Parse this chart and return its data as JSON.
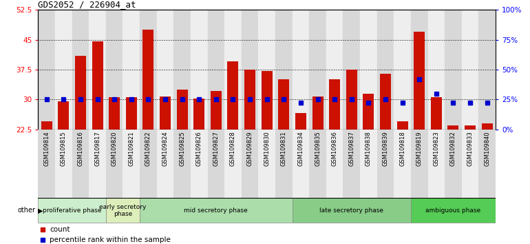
{
  "title": "GDS2052 / 226904_at",
  "samples": [
    "GSM109814",
    "GSM109815",
    "GSM109816",
    "GSM109817",
    "GSM109820",
    "GSM109821",
    "GSM109822",
    "GSM109824",
    "GSM109825",
    "GSM109826",
    "GSM109827",
    "GSM109828",
    "GSM109829",
    "GSM109830",
    "GSM109831",
    "GSM109834",
    "GSM109835",
    "GSM109836",
    "GSM109837",
    "GSM109838",
    "GSM109839",
    "GSM109818",
    "GSM109819",
    "GSM109823",
    "GSM109832",
    "GSM109833",
    "GSM109840"
  ],
  "counts": [
    24.5,
    29.5,
    41.0,
    44.5,
    30.5,
    30.5,
    47.5,
    30.8,
    32.5,
    30.3,
    32.2,
    39.5,
    37.5,
    37.2,
    35.0,
    26.5,
    30.8,
    35.0,
    37.5,
    31.5,
    36.5,
    24.5,
    47.0,
    30.5,
    23.5,
    23.5,
    24.0
  ],
  "pct_right": [
    25,
    25,
    25,
    25,
    25,
    25,
    25,
    25,
    25,
    25,
    25,
    25,
    25,
    25,
    25,
    22,
    25,
    25,
    25,
    22,
    25,
    22,
    42,
    30,
    22,
    22,
    22
  ],
  "phases": [
    {
      "name": "proliferative phase",
      "start": 0,
      "end": 4,
      "color": "#cceecc"
    },
    {
      "name": "early secretory\nphase",
      "start": 4,
      "end": 6,
      "color": "#ddeebb"
    },
    {
      "name": "mid secretory phase",
      "start": 6,
      "end": 15,
      "color": "#aaddaa"
    },
    {
      "name": "late secretory phase",
      "start": 15,
      "end": 22,
      "color": "#88cc88"
    },
    {
      "name": "ambiguous phase",
      "start": 22,
      "end": 27,
      "color": "#55cc55"
    }
  ],
  "ylim_left": [
    22.5,
    52.5
  ],
  "ylim_right": [
    0,
    100
  ],
  "yticks_left": [
    22.5,
    30,
    37.5,
    45,
    52.5
  ],
  "yticks_right": [
    0,
    25,
    50,
    75,
    100
  ],
  "bar_color": "#cc1100",
  "dot_color": "#0000cc",
  "col_even": "#d8d8d8",
  "col_odd": "#eeeeee"
}
